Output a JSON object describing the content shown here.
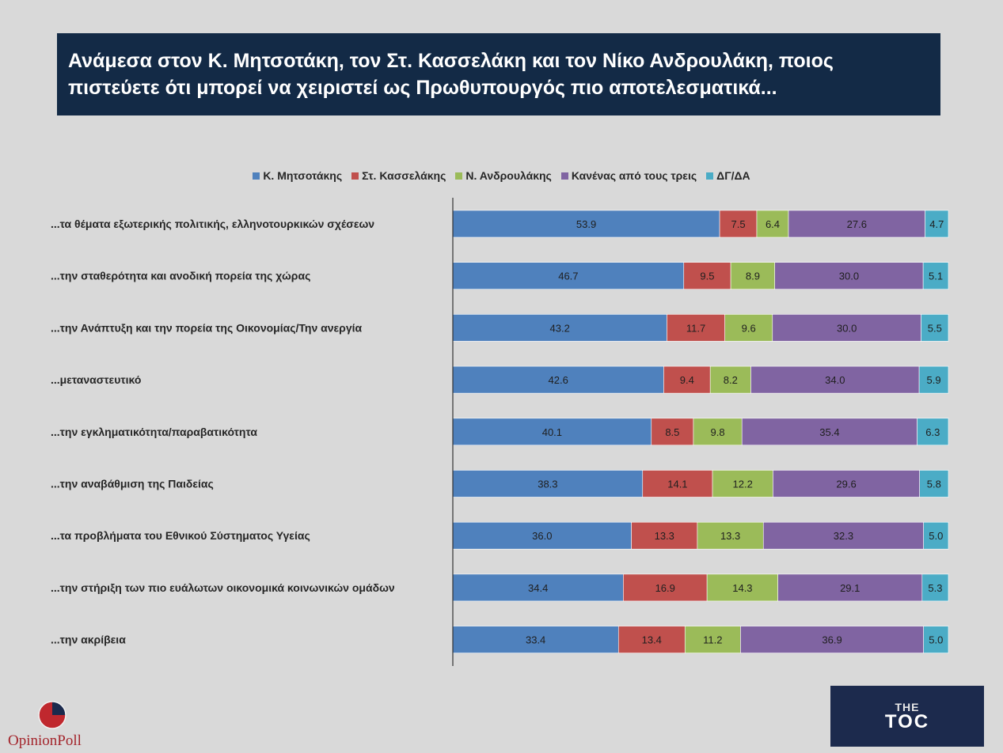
{
  "title": "Ανάμεσα στον Κ. Μητσοτάκη, τον Στ. Κασσελάκη και τον Νίκο Ανδρουλάκη, ποιος πιστεύετε ότι μπορεί να χειριστεί ως Πρωθυπουργός πιο αποτελεσματικά...",
  "colors": {
    "background": "#d9d9d9",
    "title_bg": "#132a46",
    "series": [
      "#4f81bd",
      "#c0504d",
      "#9bbb59",
      "#8064a2",
      "#4bacc6"
    ]
  },
  "chart_data": {
    "type": "bar",
    "orientation": "horizontal",
    "stacked": true,
    "legend_position": "top",
    "grid": false,
    "xlim": [
      0,
      100
    ],
    "categories": [
      "...τα θέματα εξωτερικής πολιτικής, ελληνοτουρκικών σχέσεων",
      "...την σταθερότητα και ανοδική πορεία της χώρας",
      "...την Ανάπτυξη και την πορεία της Οικονομίας/Την ανεργία",
      "...μεταναστευτικό",
      "...την εγκληματικότητα/παραβατικότητα",
      "...την αναβάθμιση της Παιδείας",
      "...τα προβλήματα του Εθνικού Σύστηματος Υγείας",
      "...την στήριξη των πιο ευάλωτων οικονομικά κοινωνικών ομάδων",
      "...την ακρίβεια"
    ],
    "series": [
      {
        "name": "Κ. Μητσοτάκης",
        "values": [
          53.9,
          46.7,
          43.2,
          42.6,
          40.1,
          38.3,
          36.0,
          34.4,
          33.4
        ]
      },
      {
        "name": "Στ. Κασσελάκης",
        "values": [
          7.5,
          9.5,
          11.7,
          9.4,
          8.5,
          14.1,
          13.3,
          16.9,
          13.4
        ]
      },
      {
        "name": "Ν. Ανδρουλάκης",
        "values": [
          6.4,
          8.9,
          9.6,
          8.2,
          9.8,
          12.2,
          13.3,
          14.3,
          11.2
        ]
      },
      {
        "name": "Κανένας από τους τρεις",
        "values": [
          27.6,
          30.0,
          30.0,
          34.0,
          35.4,
          29.6,
          32.3,
          29.1,
          36.9
        ]
      },
      {
        "name": "ΔΓ/ΔΑ",
        "values": [
          4.7,
          5.1,
          5.5,
          5.9,
          6.3,
          5.8,
          5.0,
          5.3,
          5.0
        ]
      }
    ]
  },
  "logos": {
    "opinion": "OpinionPoll",
    "toc_top": "THE",
    "toc_main": "TOC"
  }
}
